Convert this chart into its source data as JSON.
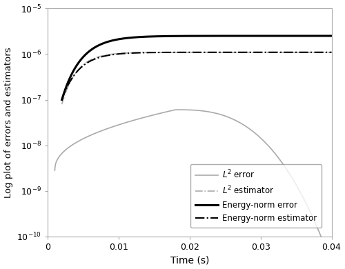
{
  "title": "",
  "xlabel": "Time (s)",
  "ylabel": "Log plot of errors and estimators",
  "xlim": [
    0,
    0.04
  ],
  "ylim_log": [
    -10,
    -5
  ],
  "figsize": [
    5.0,
    3.9
  ],
  "dpi": 100,
  "lines": {
    "L2_error": {
      "label": "$L^2$ error",
      "color": "#aaaaaa",
      "linestyle": "solid",
      "linewidth": 1.2
    },
    "L2_estimator": {
      "label": "$L^2$ estimator",
      "color": "#aaaaaa",
      "linestyle": "dashdot",
      "linewidth": 1.2
    },
    "energy_error": {
      "label": "Energy-norm error",
      "color": "#000000",
      "linestyle": "solid",
      "linewidth": 2.2
    },
    "energy_estimator": {
      "label": "Energy-norm estimator",
      "color": "#000000",
      "linestyle": "dashdot",
      "linewidth": 1.5
    }
  }
}
